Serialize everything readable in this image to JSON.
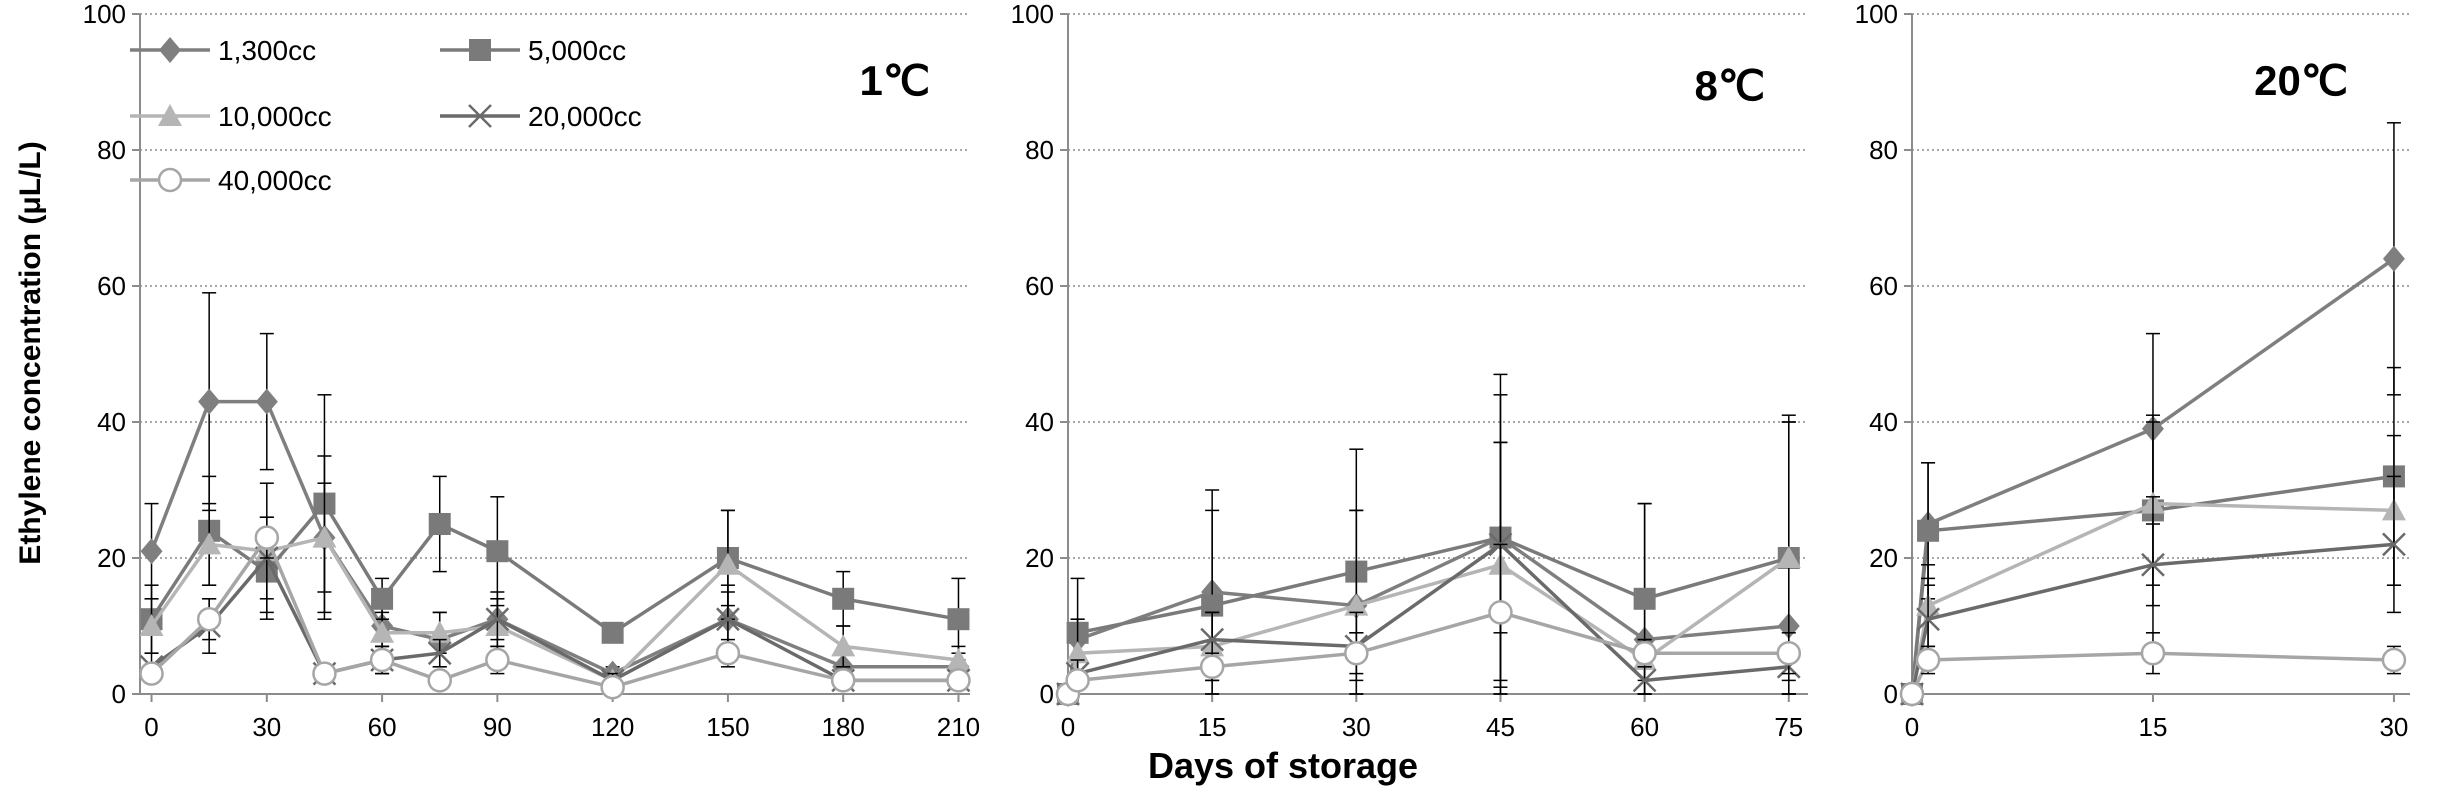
{
  "colors": {
    "s1300": "#7f7f7f",
    "s5000": "#7a7a7a",
    "s10000": "#b5b5b5",
    "s20000": "#6a6a6a",
    "s40000": "#a6a6a6",
    "axis": "#8c8c8c",
    "grid": "#8c8c8c",
    "error": "#000000"
  },
  "figure": {
    "y_axis_title": "Ethylene concentration (μL/L)",
    "x_axis_title": "Days of storage"
  },
  "chart_data": [
    {
      "type": "line",
      "panel_label": "1℃",
      "xlabel": "",
      "ylabel": "Ethylene concentration (μL/L)",
      "x": [
        0,
        15,
        30,
        45,
        60,
        75,
        90,
        120,
        150,
        180,
        210
      ],
      "xticks": [
        "0",
        "30",
        "60",
        "90",
        "120",
        "150",
        "180",
        "210"
      ],
      "xtick_values": [
        0,
        30,
        60,
        90,
        120,
        150,
        180,
        210
      ],
      "xlim": [
        -3,
        213
      ],
      "ylim": [
        0,
        100
      ],
      "yticks": [
        "0",
        "20",
        "40",
        "60",
        "80",
        "100"
      ],
      "grid": true,
      "legend_position": "top-left",
      "series": [
        {
          "name": "1,300cc",
          "marker": "diamond",
          "color_key": "s1300",
          "values": [
            21,
            43,
            43,
            23,
            10,
            8,
            11,
            3,
            11,
            4,
            4
          ],
          "errors": [
            7,
            16,
            10,
            12,
            3,
            4,
            4,
            1,
            5,
            2,
            2
          ]
        },
        {
          "name": "5,000cc",
          "marker": "square",
          "color_key": "s5000",
          "values": [
            11,
            24,
            18,
            28,
            14,
            25,
            21,
            9,
            20,
            14,
            11
          ],
          "errors": [
            5,
            8,
            6,
            16,
            3,
            7,
            8,
            1,
            7,
            4,
            6
          ]
        },
        {
          "name": "10,000cc",
          "marker": "triangle",
          "color_key": "s10000",
          "values": [
            10,
            22,
            21,
            23,
            9,
            9,
            10,
            2,
            19,
            7,
            5
          ],
          "errors": [
            4,
            6,
            10,
            8,
            3,
            3,
            4,
            1,
            8,
            3,
            2
          ]
        },
        {
          "name": "20,000cc",
          "marker": "x",
          "color_key": "s20000",
          "values": [
            4,
            10,
            20,
            3,
            5,
            6,
            11,
            2,
            11,
            2,
            2
          ],
          "errors": [
            2,
            4,
            6,
            1,
            2,
            2,
            3,
            1,
            4,
            1,
            1
          ]
        },
        {
          "name": "40,000cc",
          "marker": "circle",
          "color_key": "s40000",
          "values": [
            3,
            11,
            23,
            3,
            5,
            2,
            5,
            1,
            6,
            2,
            2
          ],
          "errors": [
            1,
            3,
            3,
            1,
            2,
            1,
            2,
            1,
            2,
            1,
            1
          ]
        }
      ]
    },
    {
      "type": "line",
      "panel_label": "8℃",
      "xlabel": "Days of storage",
      "ylabel": "",
      "x": [
        0,
        1,
        15,
        30,
        45,
        60,
        75
      ],
      "xticks": [
        "0",
        "15",
        "30",
        "45",
        "60",
        "75"
      ],
      "xtick_values": [
        0,
        15,
        30,
        45,
        60,
        75
      ],
      "xlim": [
        0,
        77
      ],
      "ylim": [
        0,
        100
      ],
      "yticks": [
        "0",
        "20",
        "40",
        "60",
        "80",
        "100"
      ],
      "grid": true,
      "series": [
        {
          "name": "1,300cc",
          "marker": "diamond",
          "color_key": "s1300",
          "values": [
            0,
            8,
            15,
            13,
            23,
            8,
            10
          ],
          "errors": [
            0,
            3,
            15,
            23,
            24,
            20,
            30
          ]
        },
        {
          "name": "5,000cc",
          "marker": "square",
          "color_key": "s5000",
          "values": [
            0,
            9,
            13,
            18,
            23,
            14,
            20
          ],
          "errors": [
            0,
            8,
            14,
            9,
            14,
            14,
            21
          ]
        },
        {
          "name": "10,000cc",
          "marker": "triangle",
          "color_key": "s10000",
          "values": [
            0,
            6,
            7,
            13,
            19,
            5,
            20
          ],
          "errors": [
            0,
            5,
            5,
            14,
            18,
            3,
            20
          ]
        },
        {
          "name": "20,000cc",
          "marker": "x",
          "color_key": "s20000",
          "values": [
            0,
            3,
            8,
            7,
            22,
            2,
            4
          ],
          "errors": [
            0,
            2,
            4,
            5,
            22,
            2,
            2
          ]
        },
        {
          "name": "40,000cc",
          "marker": "circle",
          "color_key": "s40000",
          "values": [
            0,
            2,
            4,
            6,
            12,
            6,
            6
          ],
          "errors": [
            0,
            1,
            2,
            3,
            10,
            2,
            3
          ]
        }
      ]
    },
    {
      "type": "line",
      "panel_label": "20℃",
      "xlabel": "",
      "ylabel": "",
      "x": [
        0,
        1,
        15,
        30
      ],
      "xticks": [
        "0",
        "15",
        "30"
      ],
      "xtick_values": [
        0,
        15,
        30
      ],
      "xlim": [
        0,
        31
      ],
      "ylim": [
        0,
        100
      ],
      "yticks": [
        "0",
        "20",
        "40",
        "60",
        "80",
        "100"
      ],
      "grid": true,
      "series": [
        {
          "name": "1,300cc",
          "marker": "diamond",
          "color_key": "s1300",
          "values": [
            0,
            25,
            39,
            64
          ],
          "errors": [
            0,
            9,
            14,
            20
          ]
        },
        {
          "name": "5,000cc",
          "marker": "square",
          "color_key": "s5000",
          "values": [
            0,
            24,
            27,
            32
          ],
          "errors": [
            0,
            10,
            14,
            16
          ]
        },
        {
          "name": "10,000cc",
          "marker": "triangle",
          "color_key": "s10000",
          "values": [
            0,
            13,
            28,
            27
          ],
          "errors": [
            0,
            6,
            12,
            11
          ]
        },
        {
          "name": "20,000cc",
          "marker": "x",
          "color_key": "s20000",
          "values": [
            0,
            11,
            19,
            22
          ],
          "errors": [
            0,
            6,
            10,
            10
          ]
        },
        {
          "name": "40,000cc",
          "marker": "circle",
          "color_key": "s40000",
          "values": [
            0,
            5,
            6,
            5
          ],
          "errors": [
            0,
            2,
            3,
            2
          ]
        }
      ]
    }
  ]
}
